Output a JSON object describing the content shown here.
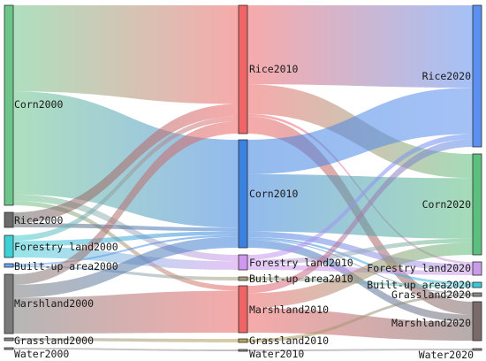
{
  "nodes": [
    {
      "id": "corn2000",
      "label": "Corn2000",
      "color": "#6cc58a"
    },
    {
      "id": "rice2000",
      "label": "Rice2000",
      "color": "#6b6b6b"
    },
    {
      "id": "forest2000",
      "label": "Forestry land2000",
      "color": "#3fd0d6"
    },
    {
      "id": "built2000",
      "label": "Built-up area2000",
      "color": "#6aa6f0"
    },
    {
      "id": "marsh2000",
      "label": "Marshland2000",
      "color": "#7a7a7a"
    },
    {
      "id": "grass2000",
      "label": "Grassland2000",
      "color": "#8a8a8a"
    },
    {
      "id": "water2000",
      "label": "Water2000",
      "color": "#9a9a9a"
    },
    {
      "id": "rice2010",
      "label": "Rice2010",
      "color": "#f06565"
    },
    {
      "id": "corn2010",
      "label": "Corn2010",
      "color": "#3b82e0"
    },
    {
      "id": "forest2010",
      "label": "Forestry land2010",
      "color": "#cf97ef"
    },
    {
      "id": "built2010",
      "label": "Built-up area2010",
      "color": "#a8a27a"
    },
    {
      "id": "marsh2010",
      "label": "Marshland2010",
      "color": "#ef6464"
    },
    {
      "id": "grass2010",
      "label": "Grassland2010",
      "color": "#b7a35c"
    },
    {
      "id": "water2010",
      "label": "Water2010",
      "color": "#8f8f8f"
    },
    {
      "id": "rice2020",
      "label": "Rice2020",
      "color": "#5b8ff0"
    },
    {
      "id": "corn2020",
      "label": "Corn2020",
      "color": "#5cbf7d"
    },
    {
      "id": "forest2020",
      "label": "Forestry land2020",
      "color": "#c99be8"
    },
    {
      "id": "built2020",
      "label": "Built-up area2020",
      "color": "#3fc7d6"
    },
    {
      "id": "grass2020",
      "label": "Grassland2020",
      "color": "#8a8a8a"
    },
    {
      "id": "marsh2020",
      "label": "Marshland2020",
      "color": "#7a6a6a"
    },
    {
      "id": "water2020",
      "label": "Water2020",
      "color": "#9a9a9a"
    }
  ],
  "links": [
    {
      "source": "corn2000",
      "target": "rice2010",
      "value": 40
    },
    {
      "source": "corn2000",
      "target": "corn2010",
      "value": 48
    },
    {
      "source": "corn2000",
      "target": "forest2010",
      "value": 3
    },
    {
      "source": "corn2000",
      "target": "marsh2010",
      "value": 2
    },
    {
      "source": "rice2000",
      "target": "rice2010",
      "value": 5
    },
    {
      "source": "rice2000",
      "target": "corn2010",
      "value": 2
    },
    {
      "source": "forest2000",
      "target": "rice2010",
      "value": 2
    },
    {
      "source": "forest2000",
      "target": "corn2010",
      "value": 2
    },
    {
      "source": "forest2000",
      "target": "forest2010",
      "value": 4
    },
    {
      "source": "built2000",
      "target": "corn2010",
      "value": 1
    },
    {
      "source": "built2000",
      "target": "built2010",
      "value": 1
    },
    {
      "source": "marsh2000",
      "target": "rice2010",
      "value": 5
    },
    {
      "source": "marsh2000",
      "target": "corn2010",
      "value": 6
    },
    {
      "source": "marsh2000",
      "target": "marsh2010",
      "value": 17
    },
    {
      "source": "grass2000",
      "target": "grass2010",
      "value": 1
    },
    {
      "source": "water2000",
      "target": "water2010",
      "value": 0.5
    },
    {
      "source": "rice2010",
      "target": "rice2020",
      "value": 32
    },
    {
      "source": "rice2010",
      "target": "corn2020",
      "value": 12
    },
    {
      "source": "rice2010",
      "target": "forest2020",
      "value": 1
    },
    {
      "source": "rice2010",
      "target": "marsh2020",
      "value": 7
    },
    {
      "source": "corn2010",
      "target": "rice2020",
      "value": 18
    },
    {
      "source": "corn2010",
      "target": "corn2020",
      "value": 30
    },
    {
      "source": "corn2010",
      "target": "forest2020",
      "value": 3
    },
    {
      "source": "corn2010",
      "target": "built2020",
      "value": 1
    },
    {
      "source": "corn2010",
      "target": "marsh2020",
      "value": 4
    },
    {
      "source": "corn2010",
      "target": "grass2020",
      "value": 0.5
    },
    {
      "source": "forest2010",
      "target": "rice2020",
      "value": 2
    },
    {
      "source": "forest2010",
      "target": "corn2020",
      "value": 2
    },
    {
      "source": "forest2010",
      "target": "forest2020",
      "value": 2
    },
    {
      "source": "built2010",
      "target": "built2020",
      "value": 1
    },
    {
      "source": "marsh2010",
      "target": "rice2020",
      "value": 3
    },
    {
      "source": "marsh2010",
      "target": "corn2020",
      "value": 6
    },
    {
      "source": "marsh2010",
      "target": "marsh2020",
      "value": 10
    },
    {
      "source": "grass2010",
      "target": "grass2020",
      "value": 1
    },
    {
      "source": "water2010",
      "target": "water2020",
      "value": 0.5
    }
  ]
}
